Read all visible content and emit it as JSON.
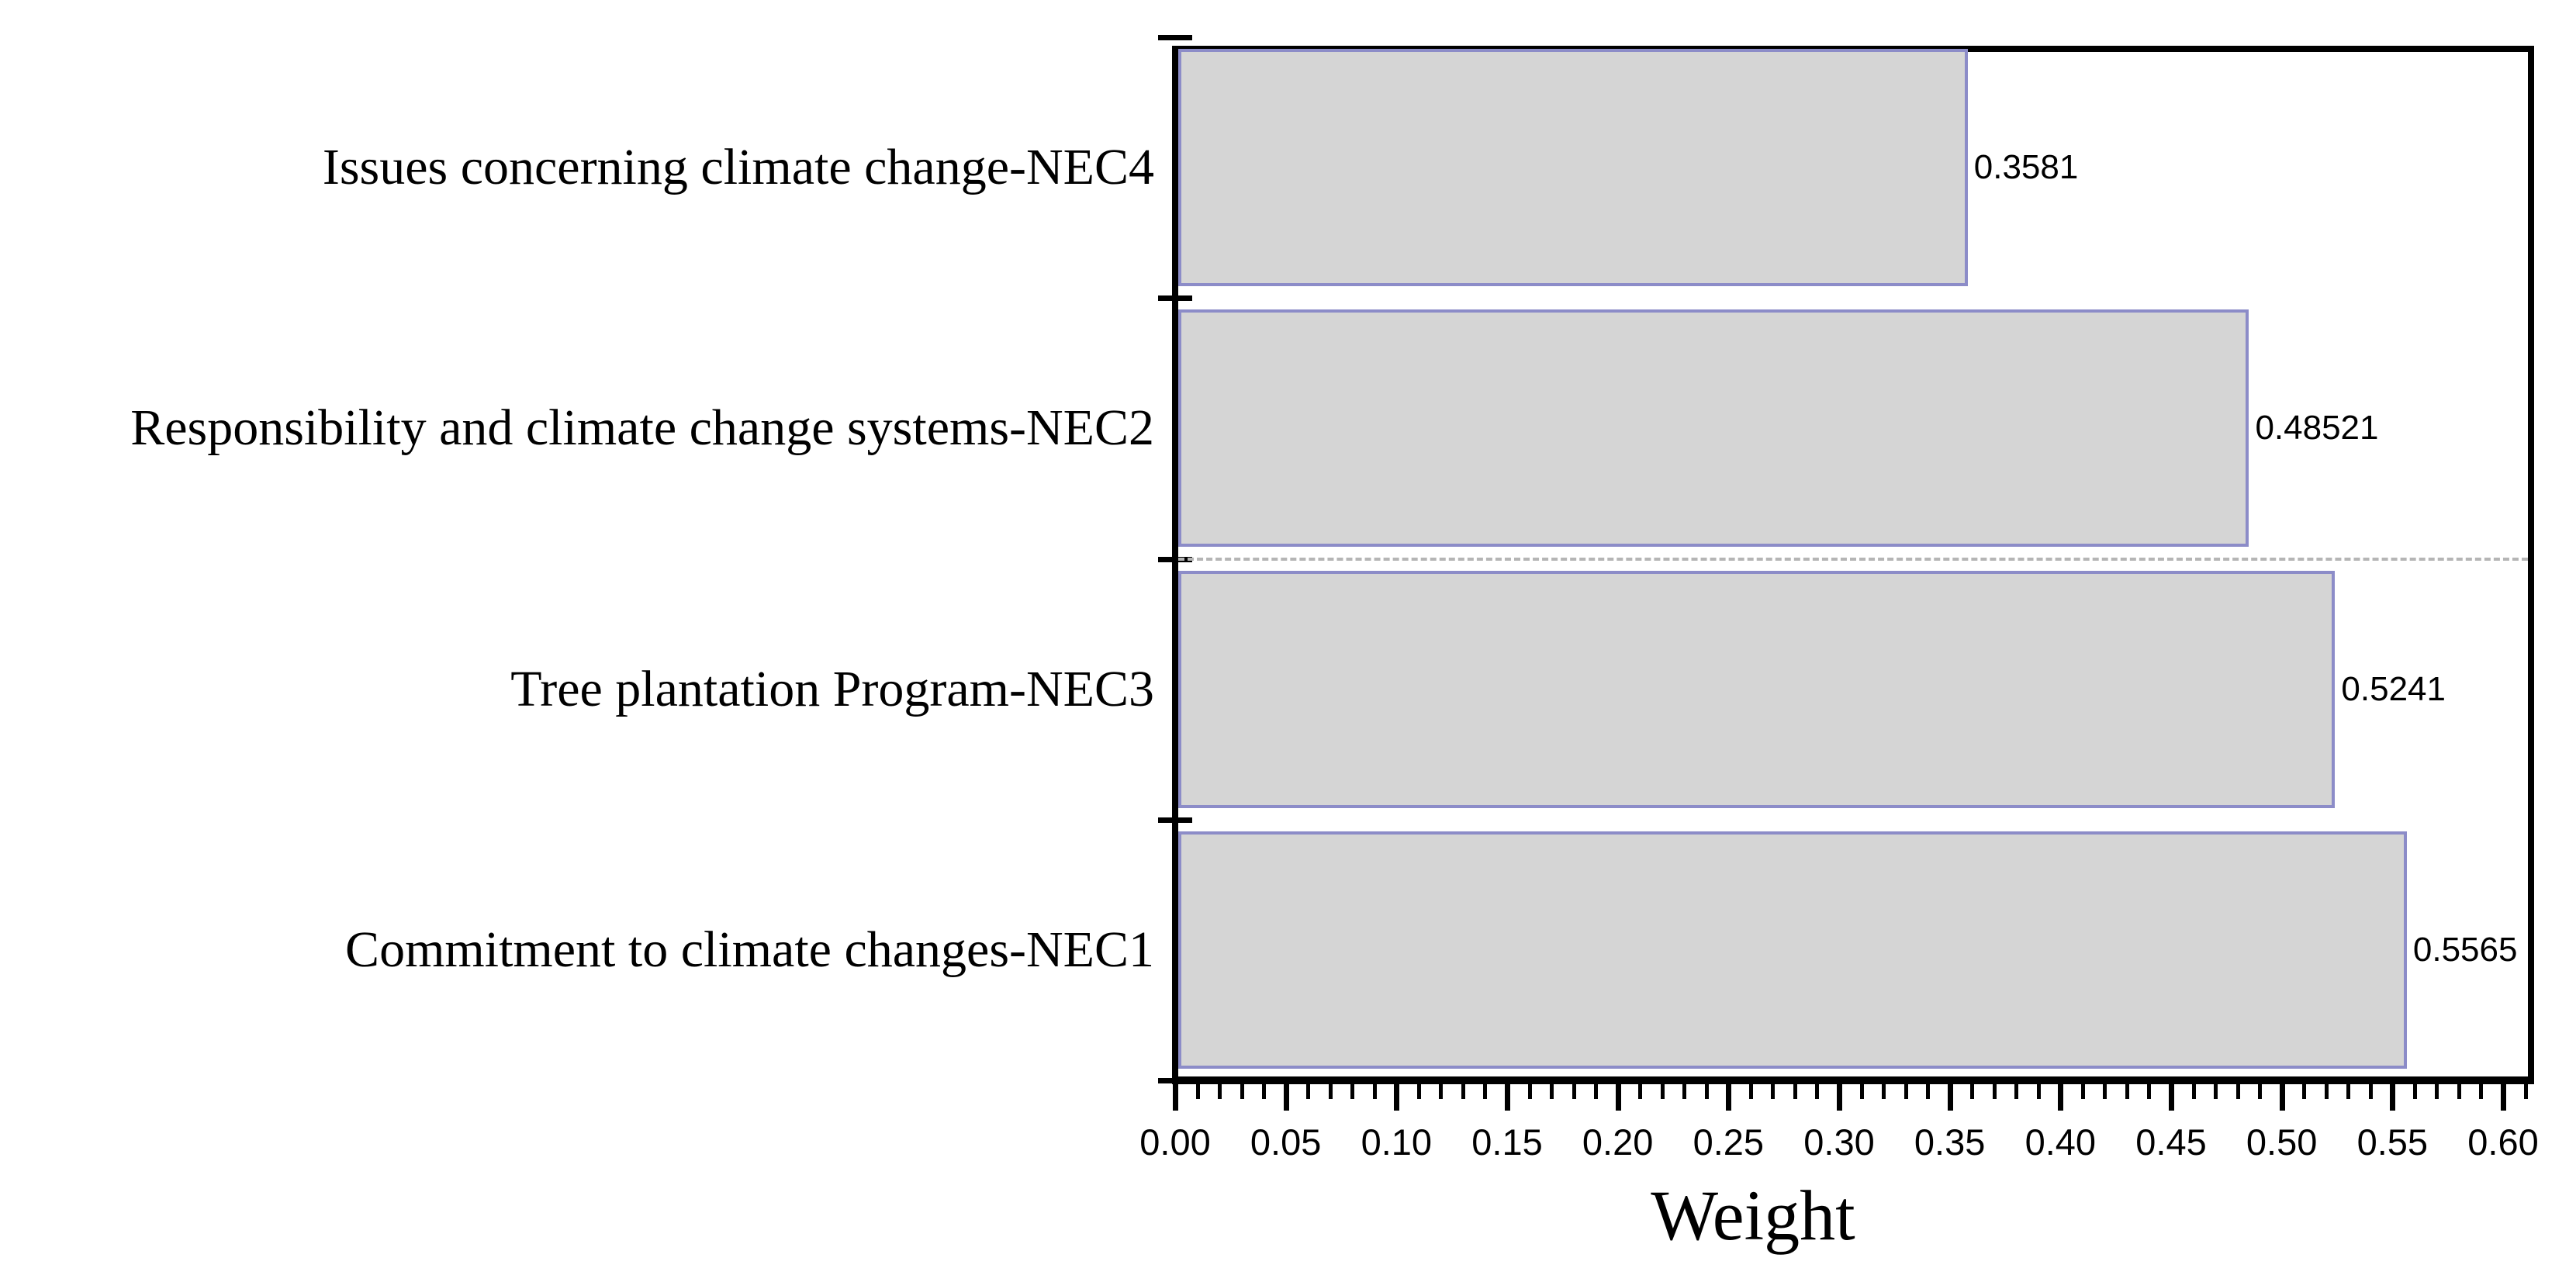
{
  "figure": {
    "background": "#ffffff",
    "title": ""
  },
  "chart_data": {
    "type": "bar",
    "orientation": "horizontal",
    "title": "",
    "xlabel": "Weight",
    "ylabel": "",
    "categories": [
      "Issues concerning climate change-NEC4",
      "Responsibility and climate change systems-NEC2",
      "Tree plantation Program-NEC3",
      "Commitment to climate changes-NEC1"
    ],
    "values": [
      0.3581,
      0.48521,
      0.5241,
      0.5565
    ],
    "value_labels": [
      "0.3581",
      "0.48521",
      "0.5241",
      "0.5565"
    ],
    "xlim": [
      0,
      0.6125
    ],
    "x_major_ticks": [
      0.0,
      0.05,
      0.1,
      0.15,
      0.2,
      0.25,
      0.3,
      0.35,
      0.4,
      0.45,
      0.5,
      0.55,
      0.6
    ],
    "x_tick_labels": [
      "0.00",
      "0.05",
      "0.10",
      "0.15",
      "0.20",
      "0.25",
      "0.30",
      "0.35",
      "0.40",
      "0.45",
      "0.50",
      "0.55",
      "0.60"
    ],
    "x_minor_tick_step": 0.01,
    "grid": false,
    "dashed_gridline_after_category_index": 1,
    "legend": null,
    "colors": {
      "bar_fill": "#d5d5d5",
      "bar_border": "#8c8cc8",
      "axis": "#000000",
      "dashed_line": "#b5b5b5",
      "text": "#000000"
    }
  }
}
